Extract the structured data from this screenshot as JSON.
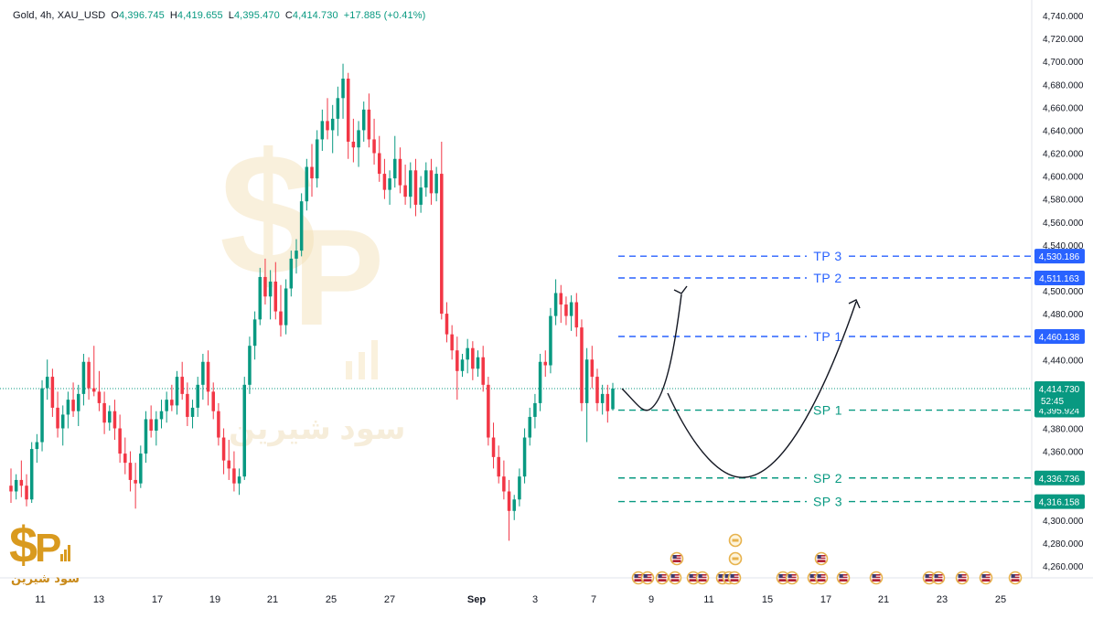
{
  "legend": {
    "symbol": "Gold, 4h, XAU_USD",
    "o_label": "O",
    "o_value": "4,396.745",
    "h_label": "H",
    "h_value": "4,419.655",
    "l_label": "L",
    "l_value": "4,395.470",
    "c_label": "C",
    "c_value": "4,414.730",
    "change": "+17.885 (+0.41%)"
  },
  "watermark": {
    "text": "سود شیرین"
  },
  "chart_data": {
    "type": "candlestick",
    "y_ticks": [
      4260,
      4280,
      4300,
      4320,
      4340,
      4360,
      4380,
      4400,
      4420,
      4440,
      4460,
      4480,
      4500,
      4520,
      4540,
      4560,
      4580,
      4600,
      4620,
      4640,
      4660,
      4680,
      4700,
      4720,
      4740
    ],
    "y_tick_labels": [
      "4,260.000",
      "4,280.000",
      "4,300.000",
      "4,320.000",
      "4,340.000",
      "4,360.000",
      "4,380.000",
      "4,400.000",
      "4,420.000",
      "4,440.000",
      "4,460.000",
      "4,480.000",
      "4,500.000",
      "4,520.000",
      "4,540.000",
      "4,560.000",
      "4,580.000",
      "4,600.000",
      "4,620.000",
      "4,640.000",
      "4,660.000",
      "4,680.000",
      "4,700.000",
      "4,720.000",
      "4,740.000"
    ],
    "ylim": [
      4240,
      4750
    ],
    "x_labels": [
      "11",
      "13",
      "17",
      "19",
      "21",
      "25",
      "27",
      "Sep",
      "3",
      "7",
      "9",
      "11",
      "15",
      "17",
      "21",
      "23",
      "25"
    ],
    "current_price": {
      "value": 4414.73,
      "label": "4,414.730",
      "countdown": "52:45",
      "color": "#089981"
    },
    "levels": [
      {
        "name": "TP 3",
        "value": 4530.186,
        "label": "4,530.186",
        "color": "#2962ff"
      },
      {
        "name": "TP 2",
        "value": 4511.163,
        "label": "4,511.163",
        "color": "#2962ff"
      },
      {
        "name": "TP 1",
        "value": 4460.138,
        "label": "4,460.138",
        "color": "#2962ff"
      },
      {
        "name": "SP 1",
        "value": 4395.924,
        "label": "4,395.924",
        "color": "#089981"
      },
      {
        "name": "SP 2",
        "value": 4336.736,
        "label": "4,336.736",
        "color": "#089981"
      },
      {
        "name": "SP 3",
        "value": 4316.158,
        "label": "4,316.158",
        "color": "#089981"
      }
    ],
    "candles": [
      [
        4330,
        4345,
        4315,
        4325
      ],
      [
        4325,
        4340,
        4318,
        4335
      ],
      [
        4335,
        4352,
        4320,
        4330
      ],
      [
        4330,
        4340,
        4312,
        4318
      ],
      [
        4318,
        4368,
        4315,
        4362
      ],
      [
        4362,
        4375,
        4350,
        4368
      ],
      [
        4368,
        4422,
        4360,
        4415
      ],
      [
        4415,
        4440,
        4405,
        4425
      ],
      [
        4425,
        4432,
        4390,
        4398
      ],
      [
        4398,
        4412,
        4372,
        4380
      ],
      [
        4380,
        4400,
        4365,
        4392
      ],
      [
        4392,
        4412,
        4380,
        4405
      ],
      [
        4405,
        4420,
        4390,
        4395
      ],
      [
        4395,
        4418,
        4382,
        4410
      ],
      [
        4410,
        4445,
        4400,
        4438
      ],
      [
        4438,
        4442,
        4405,
        4415
      ],
      [
        4415,
        4452,
        4408,
        4412
      ],
      [
        4412,
        4430,
        4395,
        4402
      ],
      [
        4402,
        4412,
        4375,
        4385
      ],
      [
        4385,
        4400,
        4378,
        4395
      ],
      [
        4395,
        4405,
        4370,
        4380
      ],
      [
        4380,
        4392,
        4350,
        4358
      ],
      [
        4358,
        4372,
        4340,
        4350
      ],
      [
        4350,
        4360,
        4325,
        4335
      ],
      [
        4335,
        4350,
        4310,
        4332
      ],
      [
        4332,
        4365,
        4328,
        4358
      ],
      [
        4358,
        4395,
        4350,
        4388
      ],
      [
        4388,
        4400,
        4372,
        4378
      ],
      [
        4378,
        4395,
        4365,
        4388
      ],
      [
        4388,
        4405,
        4380,
        4395
      ],
      [
        4395,
        4412,
        4385,
        4405
      ],
      [
        4405,
        4418,
        4395,
        4400
      ],
      [
        4400,
        4430,
        4392,
        4425
      ],
      [
        4425,
        4438,
        4405,
        4410
      ],
      [
        4410,
        4420,
        4382,
        4390
      ],
      [
        4390,
        4405,
        4380,
        4398
      ],
      [
        4398,
        4425,
        4390,
        4418
      ],
      [
        4418,
        4445,
        4405,
        4438
      ],
      [
        4438,
        4448,
        4400,
        4412
      ],
      [
        4412,
        4420,
        4388,
        4395
      ],
      [
        4395,
        4402,
        4365,
        4372
      ],
      [
        4372,
        4380,
        4340,
        4352
      ],
      [
        4352,
        4370,
        4335,
        4345
      ],
      [
        4345,
        4360,
        4325,
        4332
      ],
      [
        4332,
        4345,
        4322,
        4338
      ],
      [
        4338,
        4425,
        4335,
        4418
      ],
      [
        4418,
        4460,
        4410,
        4452
      ],
      [
        4452,
        4482,
        4440,
        4475
      ],
      [
        4475,
        4520,
        4470,
        4512
      ],
      [
        4512,
        4528,
        4488,
        4495
      ],
      [
        4495,
        4518,
        4475,
        4508
      ],
      [
        4508,
        4525,
        4475,
        4482
      ],
      [
        4482,
        4505,
        4460,
        4470
      ],
      [
        4470,
        4510,
        4462,
        4502
      ],
      [
        4502,
        4535,
        4495,
        4528
      ],
      [
        4528,
        4545,
        4515,
        4535
      ],
      [
        4535,
        4585,
        4530,
        4578
      ],
      [
        4578,
        4615,
        4570,
        4608
      ],
      [
        4608,
        4628,
        4582,
        4598
      ],
      [
        4598,
        4640,
        4590,
        4632
      ],
      [
        4632,
        4658,
        4622,
        4648
      ],
      [
        4648,
        4668,
        4632,
        4640
      ],
      [
        4640,
        4662,
        4620,
        4650
      ],
      [
        4650,
        4678,
        4635,
        4668
      ],
      [
        4668,
        4698,
        4650,
        4685
      ],
      [
        4685,
        4690,
        4615,
        4630
      ],
      [
        4630,
        4650,
        4612,
        4625
      ],
      [
        4625,
        4648,
        4608,
        4640
      ],
      [
        4640,
        4665,
        4630,
        4658
      ],
      [
        4658,
        4672,
        4625,
        4632
      ],
      [
        4632,
        4650,
        4610,
        4620
      ],
      [
        4620,
        4635,
        4595,
        4602
      ],
      [
        4602,
        4615,
        4580,
        4588
      ],
      [
        4588,
        4605,
        4575,
        4598
      ],
      [
        4598,
        4635,
        4590,
        4615
      ],
      [
        4615,
        4625,
        4585,
        4592
      ],
      [
        4592,
        4610,
        4575,
        4582
      ],
      [
        4582,
        4612,
        4572,
        4605
      ],
      [
        4605,
        4615,
        4565,
        4575
      ],
      [
        4575,
        4600,
        4568,
        4590
      ],
      [
        4590,
        4612,
        4582,
        4605
      ],
      [
        4605,
        4615,
        4575,
        4585
      ],
      [
        4585,
        4608,
        4578,
        4602
      ],
      [
        4602,
        4630,
        4475,
        4480
      ],
      [
        4480,
        4490,
        4455,
        4462
      ],
      [
        4462,
        4470,
        4440,
        4448
      ],
      [
        4448,
        4460,
        4405,
        4430
      ],
      [
        4430,
        4445,
        4425,
        4440
      ],
      [
        4440,
        4458,
        4428,
        4450
      ],
      [
        4450,
        4456,
        4422,
        4432
      ],
      [
        4432,
        4448,
        4425,
        4442
      ],
      [
        4442,
        4452,
        4412,
        4418
      ],
      [
        4418,
        4425,
        4365,
        4372
      ],
      [
        4372,
        4385,
        4345,
        4355
      ],
      [
        4355,
        4365,
        4332,
        4338
      ],
      [
        4338,
        4352,
        4318,
        4325
      ],
      [
        4325,
        4335,
        4282,
        4308
      ],
      [
        4308,
        4322,
        4300,
        4318
      ],
      [
        4318,
        4345,
        4312,
        4338
      ],
      [
        4338,
        4380,
        4332,
        4372
      ],
      [
        4372,
        4398,
        4365,
        4390
      ],
      [
        4390,
        4410,
        4380,
        4402
      ],
      [
        4402,
        4445,
        4395,
        4438
      ],
      [
        4438,
        4448,
        4425,
        4435
      ],
      [
        4435,
        4485,
        4428,
        4478
      ],
      [
        4478,
        4510,
        4470,
        4498
      ],
      [
        4498,
        4505,
        4472,
        4488
      ],
      [
        4488,
        4495,
        4470,
        4478
      ],
      [
        4478,
        4496,
        4465,
        4490
      ],
      [
        4490,
        4498,
        4460,
        4468
      ],
      [
        4468,
        4475,
        4395,
        4402
      ],
      [
        4402,
        4450,
        4368,
        4440
      ],
      [
        4440,
        4452,
        4415,
        4425
      ],
      [
        4425,
        4432,
        4395,
        4402
      ],
      [
        4402,
        4418,
        4392,
        4410
      ],
      [
        4410,
        4418,
        4385,
        4395
      ],
      [
        4396.745,
        4419.655,
        4395.47,
        4414.73
      ]
    ]
  }
}
